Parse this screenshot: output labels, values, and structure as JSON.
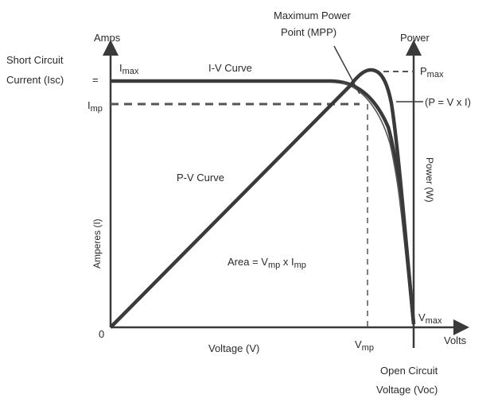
{
  "labels": {
    "amps": "Amps",
    "power": "Power",
    "volts": "Volts",
    "origin": "0",
    "isc_line1": "Short Circuit",
    "isc_line2": "Current (Isc)",
    "isc_marker": "=",
    "imax_sym": "I",
    "imax_sub": "max",
    "imp_sym": "I",
    "imp_sub": "mp",
    "iv_curve": "I-V Curve",
    "mpp_line1": "Maximum Power",
    "mpp_line2": "Point (MPP)",
    "pmax_sym": "P",
    "pmax_sub": "max",
    "p_formula": "(P = V x I)",
    "pv_curve": "P-V Curve",
    "amperes_axis": "Amperes (I)",
    "power_axis": "Power (W)",
    "area_prefix": "Area = V",
    "area_sub1": "mp",
    "area_mid": " x I",
    "area_sub2": "mp",
    "vmax_sym": "V",
    "vmax_sub": "max",
    "vmp_sym": "V",
    "vmp_sub": "mp",
    "voltage_axis": "Voltage (V)",
    "voc_line1": "Open Circuit",
    "voc_line2": "Voltage (Voc)"
  },
  "colors": {
    "curve": "#3a3a3a",
    "guide": "#555555",
    "text": "#2a2a2a"
  }
}
